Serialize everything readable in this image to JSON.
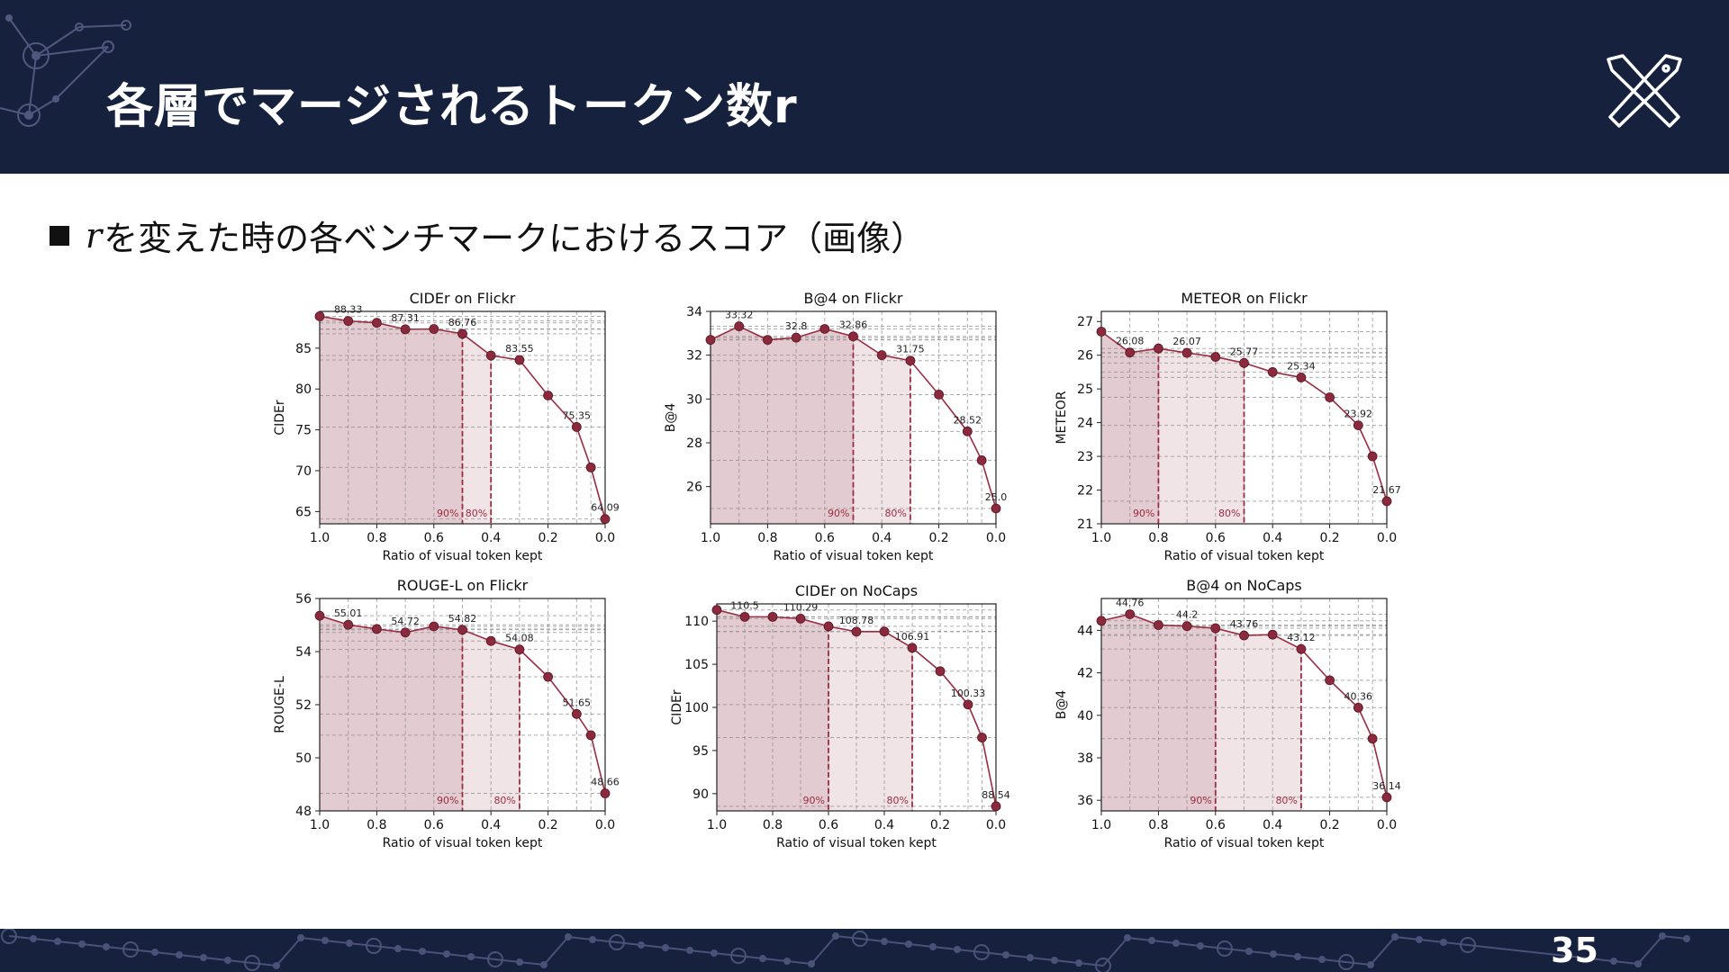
{
  "slide": {
    "title": "各層でマージされるトークン数r",
    "bullet_var": "r",
    "bullet_text": "を変えた時の各ベンチマークにおけるスコア（画像）",
    "page_number": "35"
  },
  "colors": {
    "header_bg": "#16213e",
    "series": "#9b2c42",
    "marker": "#8b2a3c",
    "fill_90": "#e3ccd1",
    "fill_80": "#f1e4e7"
  },
  "icons": [
    "network-decoration-icon",
    "crossed-tools-logo-icon"
  ],
  "chart_data": [
    {
      "type": "line",
      "title": "CIDEr on Flickr",
      "xlabel": "Ratio of visual token kept",
      "ylabel": "CIDEr",
      "xlim": [
        1.0,
        0.0
      ],
      "ylim": [
        63.5,
        89.5
      ],
      "xticks": [
        "1.0",
        "0.8",
        "0.6",
        "0.4",
        "0.2",
        "0.0"
      ],
      "yticks": [
        65,
        70,
        75,
        80,
        85
      ],
      "x": [
        1.0,
        0.9,
        0.8,
        0.7,
        0.6,
        0.5,
        0.4,
        0.3,
        0.2,
        0.1,
        0.05,
        0.0
      ],
      "y": [
        88.9,
        88.33,
        88.1,
        87.31,
        87.35,
        86.76,
        84.1,
        83.55,
        79.2,
        75.35,
        70.4,
        64.09
      ],
      "labeled_points": [
        [
          0.9,
          "88.33"
        ],
        [
          0.7,
          "87.31"
        ],
        [
          0.5,
          "86.76"
        ],
        [
          0.3,
          "83.55"
        ],
        [
          0.1,
          "75.35"
        ],
        [
          0.0,
          "64.09"
        ]
      ],
      "thresholds": [
        {
          "x": 0.5,
          "label": "90%"
        },
        {
          "x": 0.4,
          "label": "80%"
        }
      ],
      "grid": true
    },
    {
      "type": "line",
      "title": "B@4 on Flickr",
      "xlabel": "Ratio of visual token kept",
      "ylabel": "B@4",
      "xlim": [
        1.0,
        0.0
      ],
      "ylim": [
        24.3,
        34.0
      ],
      "xticks": [
        "1.0",
        "0.8",
        "0.6",
        "0.4",
        "0.2",
        "0.0"
      ],
      "yticks": [
        26,
        28,
        30,
        32,
        34
      ],
      "x": [
        1.0,
        0.9,
        0.8,
        0.7,
        0.6,
        0.5,
        0.4,
        0.3,
        0.2,
        0.1,
        0.05,
        0.0
      ],
      "y": [
        32.7,
        33.32,
        32.7,
        32.8,
        33.2,
        32.86,
        32.0,
        31.75,
        30.2,
        28.52,
        27.2,
        25.0
      ],
      "labeled_points": [
        [
          0.9,
          "33.32"
        ],
        [
          0.7,
          "32.8"
        ],
        [
          0.5,
          "32.86"
        ],
        [
          0.3,
          "31.75"
        ],
        [
          0.1,
          "28.52"
        ],
        [
          0.0,
          "25.0"
        ]
      ],
      "thresholds": [
        {
          "x": 0.5,
          "label": "90%"
        },
        {
          "x": 0.3,
          "label": "80%"
        }
      ],
      "grid": true
    },
    {
      "type": "line",
      "title": "METEOR on Flickr",
      "xlabel": "Ratio of visual token kept",
      "ylabel": "METEOR",
      "xlim": [
        1.0,
        0.0
      ],
      "ylim": [
        21.0,
        27.3
      ],
      "xticks": [
        "1.0",
        "0.8",
        "0.6",
        "0.4",
        "0.2",
        "0.0"
      ],
      "yticks": [
        21,
        22,
        23,
        24,
        25,
        26,
        27
      ],
      "x": [
        1.0,
        0.9,
        0.8,
        0.7,
        0.6,
        0.5,
        0.4,
        0.3,
        0.2,
        0.1,
        0.05,
        0.0
      ],
      "y": [
        26.7,
        26.08,
        26.2,
        26.07,
        25.95,
        25.77,
        25.5,
        25.34,
        24.75,
        23.92,
        23.0,
        21.67
      ],
      "labeled_points": [
        [
          0.9,
          "26.08"
        ],
        [
          0.7,
          "26.07"
        ],
        [
          0.5,
          "25.77"
        ],
        [
          0.3,
          "25.34"
        ],
        [
          0.1,
          "23.92"
        ],
        [
          0.0,
          "21.67"
        ]
      ],
      "thresholds": [
        {
          "x": 0.8,
          "label": "90%"
        },
        {
          "x": 0.5,
          "label": "80%"
        }
      ],
      "grid": true
    },
    {
      "type": "line",
      "title": "ROUGE-L on Flickr",
      "xlabel": "Ratio of visual token kept",
      "ylabel": "ROUGE-L",
      "xlim": [
        1.0,
        0.0
      ],
      "ylim": [
        48.0,
        56.0
      ],
      "xticks": [
        "1.0",
        "0.8",
        "0.6",
        "0.4",
        "0.2",
        "0.0"
      ],
      "yticks": [
        48,
        50,
        52,
        54,
        56
      ],
      "x": [
        1.0,
        0.9,
        0.8,
        0.7,
        0.6,
        0.5,
        0.4,
        0.3,
        0.2,
        0.1,
        0.05,
        0.0
      ],
      "y": [
        55.35,
        55.01,
        54.85,
        54.72,
        54.95,
        54.82,
        54.4,
        54.08,
        53.05,
        51.65,
        50.85,
        48.66
      ],
      "labeled_points": [
        [
          0.9,
          "55.01"
        ],
        [
          0.7,
          "54.72"
        ],
        [
          0.5,
          "54.82"
        ],
        [
          0.3,
          "54.08"
        ],
        [
          0.1,
          "51.65"
        ],
        [
          0.0,
          "48.66"
        ]
      ],
      "thresholds": [
        {
          "x": 0.5,
          "label": "90%"
        },
        {
          "x": 0.3,
          "label": "80%"
        }
      ],
      "grid": true
    },
    {
      "type": "line",
      "title": "CIDEr on NoCaps",
      "xlabel": "Ratio of visual token kept",
      "ylabel": "CIDEr",
      "xlim": [
        1.0,
        0.0
      ],
      "ylim": [
        88.0,
        112.0
      ],
      "xticks": [
        "1.0",
        "0.8",
        "0.6",
        "0.4",
        "0.2",
        "0.0"
      ],
      "yticks": [
        90,
        95,
        100,
        105,
        110
      ],
      "x": [
        1.0,
        0.9,
        0.8,
        0.7,
        0.6,
        0.5,
        0.4,
        0.3,
        0.2,
        0.1,
        0.05,
        0.0
      ],
      "y": [
        111.3,
        110.5,
        110.5,
        110.29,
        109.4,
        108.78,
        108.8,
        106.91,
        104.2,
        100.33,
        96.5,
        88.54
      ],
      "labeled_points": [
        [
          0.9,
          "110.5"
        ],
        [
          0.7,
          "110.29"
        ],
        [
          0.5,
          "108.78"
        ],
        [
          0.3,
          "106.91"
        ],
        [
          0.1,
          "100.33"
        ],
        [
          0.0,
          "88.54"
        ]
      ],
      "thresholds": [
        {
          "x": 0.6,
          "label": "90%"
        },
        {
          "x": 0.3,
          "label": "80%"
        }
      ],
      "grid": true
    },
    {
      "type": "line",
      "title": "B@4 on NoCaps",
      "xlabel": "Ratio of visual token kept",
      "ylabel": "B@4",
      "xlim": [
        1.0,
        0.0
      ],
      "ylim": [
        35.5,
        45.5
      ],
      "xticks": [
        "1.0",
        "0.8",
        "0.6",
        "0.4",
        "0.2",
        "0.0"
      ],
      "yticks": [
        36,
        38,
        40,
        42,
        44
      ],
      "x": [
        1.0,
        0.9,
        0.8,
        0.7,
        0.6,
        0.5,
        0.4,
        0.3,
        0.2,
        0.1,
        0.05,
        0.0
      ],
      "y": [
        44.45,
        44.76,
        44.25,
        44.2,
        44.1,
        43.76,
        43.8,
        43.12,
        41.65,
        40.36,
        38.9,
        36.14
      ],
      "labeled_points": [
        [
          0.9,
          "44.76"
        ],
        [
          0.7,
          "44.2"
        ],
        [
          0.5,
          "43.76"
        ],
        [
          0.3,
          "43.12"
        ],
        [
          0.1,
          "40.36"
        ],
        [
          0.0,
          "36.14"
        ]
      ],
      "thresholds": [
        {
          "x": 0.6,
          "label": "90%"
        },
        {
          "x": 0.3,
          "label": "80%"
        }
      ],
      "grid": true
    }
  ]
}
